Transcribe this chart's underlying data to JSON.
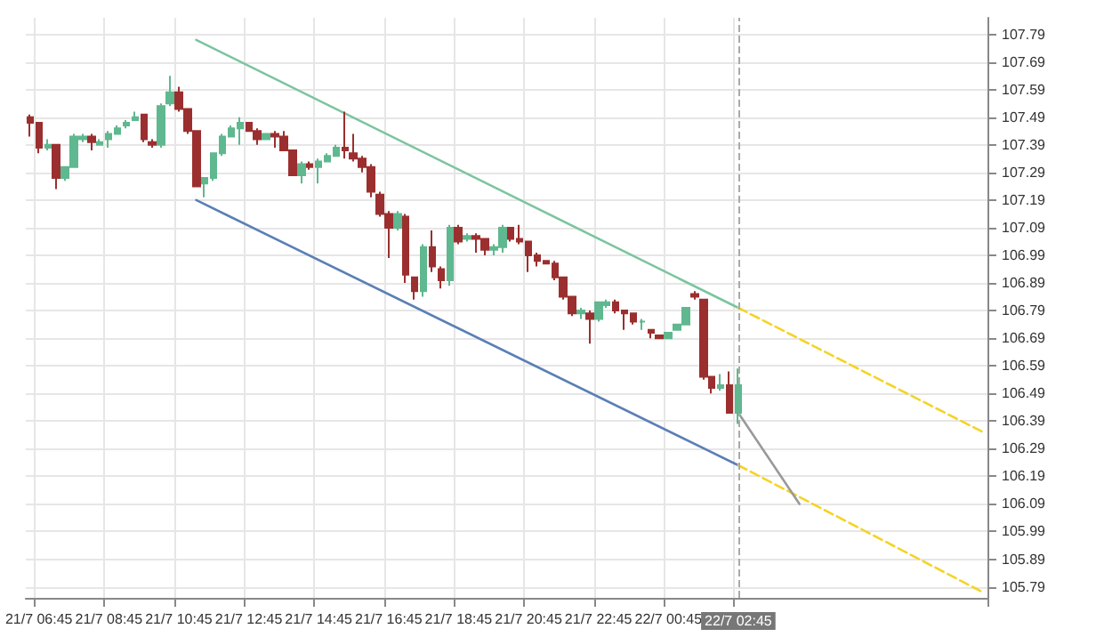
{
  "chart_data": {
    "type": "candlestick",
    "categories": [
      null,
      "21/7 06:45",
      null,
      null,
      null,
      null,
      null,
      null,
      null,
      "21/7 08:45",
      null,
      null,
      null,
      null,
      null,
      null,
      null,
      "21/7 10:45",
      null,
      null,
      null,
      null,
      null,
      null,
      null,
      "21/7 12:45",
      null,
      null,
      null,
      null,
      null,
      null,
      null,
      "21/7 14:45",
      null,
      null,
      null,
      null,
      null,
      null,
      null,
      "21/7 16:45",
      null,
      null,
      null,
      null,
      null,
      null,
      null,
      "21/7 18:45",
      null,
      null,
      null,
      null,
      null,
      null,
      null,
      "21/7 20:45",
      null,
      null,
      null,
      null,
      null,
      null,
      null,
      "21/7 22:45",
      null,
      null,
      null,
      null,
      null,
      null,
      null,
      "22/7 00:45",
      null,
      null,
      null,
      null,
      null,
      null,
      null,
      "22/7 02:45",
      null,
      null,
      null,
      null,
      null,
      null,
      null,
      null,
      null,
      null,
      null,
      null,
      null,
      null,
      null,
      null,
      null,
      null,
      null,
      null,
      null,
      null,
      null,
      null,
      null,
      null,
      null,
      null
    ],
    "series": [
      {
        "colors": [
          "#9b2f2f",
          "#9b2f2f",
          "#5fb88f",
          "#9b2f2f",
          "#5fb88f",
          "#5fb88f",
          "#5fb88f",
          "#9b2f2f",
          "#5fb88f",
          "#5fb88f",
          "#5fb88f",
          "#5fb88f",
          "#5fb88f",
          "#9b2f2f",
          "#9b2f2f",
          "#5fb88f",
          "#5fb88f",
          "#9b2f2f",
          "#9b2f2f",
          "#9b2f2f",
          "#5fb88f",
          "#5fb88f",
          "#5fb88f",
          "#5fb88f",
          "#5fb88f",
          "#9b2f2f",
          "#9b2f2f",
          "#5fb88f",
          "#9b2f2f",
          "#9b2f2f",
          "#9b2f2f",
          "#5fb88f",
          "#9b2f2f",
          "#5fb88f",
          "#5fb88f",
          "#5fb88f",
          "#9b2f2f",
          "#9b2f2f",
          "#9b2f2f",
          "#9b2f2f",
          "#9b2f2f",
          "#9b2f2f",
          "#5fb88f",
          "#9b2f2f",
          "#9b2f2f",
          "#5fb88f",
          "#9b2f2f",
          "#9b2f2f",
          "#5fb88f",
          "#9b2f2f",
          "#5fb88f",
          "#9b2f2f",
          "#9b2f2f",
          "#5fb88f",
          "#5fb88f",
          "#9b2f2f",
          "#9b2f2f",
          "#9b2f2f",
          "#9b2f2f",
          "#9b2f2f",
          "#9b2f2f",
          "#9b2f2f",
          "#9b2f2f",
          "#5fb88f",
          "#9b2f2f",
          "#5fb88f",
          "#5fb88f",
          "#9b2f2f",
          "#9b2f2f",
          "#9b2f2f",
          "#5fb88f",
          "#9b2f2f",
          "#9b2f2f",
          "#5fb88f",
          "#5fb88f",
          "#5fb88f",
          "#9b2f2f",
          "#9b2f2f",
          "#9b2f2f",
          "#5fb88f",
          "#9b2f2f",
          "#5fb88f",
          null,
          null,
          null,
          null,
          null,
          null,
          null,
          null,
          null,
          null,
          null,
          null,
          null,
          null,
          null,
          null,
          null,
          null,
          null,
          null,
          null,
          null,
          null,
          null,
          null,
          null,
          null,
          null
        ],
        "ohlc": [
          [
            107.49,
            107.5,
            107.42,
            107.47
          ],
          [
            107.47,
            107.47,
            107.36,
            107.38
          ],
          [
            107.38,
            107.41,
            107.37,
            107.39
          ],
          [
            107.39,
            107.39,
            107.23,
            107.27
          ],
          [
            107.27,
            107.31,
            107.26,
            107.31
          ],
          [
            107.31,
            107.43,
            107.31,
            107.42
          ],
          [
            107.41,
            107.43,
            107.4,
            107.42
          ],
          [
            107.42,
            107.43,
            107.37,
            107.4
          ],
          [
            107.39,
            107.41,
            107.39,
            107.4
          ],
          [
            107.41,
            107.44,
            107.38,
            107.43
          ],
          [
            107.43,
            107.46,
            107.43,
            107.45
          ],
          [
            107.46,
            107.48,
            107.45,
            107.47
          ],
          [
            107.48,
            107.51,
            107.48,
            107.49
          ],
          [
            107.5,
            107.5,
            107.4,
            107.41
          ],
          [
            107.4,
            107.41,
            107.38,
            107.39
          ],
          [
            107.39,
            107.54,
            107.38,
            107.53
          ],
          [
            107.54,
            107.64,
            107.53,
            107.58
          ],
          [
            107.58,
            107.6,
            107.51,
            107.52
          ],
          [
            107.52,
            107.52,
            107.43,
            107.44
          ],
          [
            107.44,
            107.44,
            107.24,
            107.24
          ],
          [
            107.25,
            107.27,
            107.2,
            107.27
          ],
          [
            107.27,
            107.36,
            107.26,
            107.36
          ],
          [
            107.36,
            107.43,
            107.35,
            107.42
          ],
          [
            107.42,
            107.46,
            107.42,
            107.45
          ],
          [
            107.45,
            107.49,
            107.39,
            107.47
          ],
          [
            107.47,
            107.47,
            107.44,
            107.44
          ],
          [
            107.44,
            107.45,
            107.39,
            107.41
          ],
          [
            107.41,
            107.43,
            107.41,
            107.43
          ],
          [
            107.43,
            107.44,
            107.38,
            107.42
          ],
          [
            107.42,
            107.44,
            107.37,
            107.37
          ],
          [
            107.37,
            107.37,
            107.28,
            107.28
          ],
          [
            107.28,
            107.33,
            107.25,
            107.32
          ],
          [
            107.32,
            107.33,
            107.3,
            107.31
          ],
          [
            107.31,
            107.34,
            107.25,
            107.33
          ],
          [
            107.33,
            107.36,
            107.33,
            107.35
          ],
          [
            107.35,
            107.39,
            107.35,
            107.38
          ],
          [
            107.38,
            107.51,
            107.34,
            107.37
          ],
          [
            107.36,
            107.43,
            107.33,
            107.34
          ],
          [
            107.34,
            107.35,
            107.29,
            107.31
          ],
          [
            107.31,
            107.32,
            107.2,
            107.22
          ],
          [
            107.21,
            107.22,
            107.13,
            107.14
          ],
          [
            107.14,
            107.15,
            106.98,
            107.09
          ],
          [
            107.09,
            107.15,
            107.08,
            107.14
          ],
          [
            107.13,
            107.14,
            106.89,
            106.92
          ],
          [
            106.91,
            106.91,
            106.83,
            106.86
          ],
          [
            106.86,
            107.03,
            106.84,
            107.02
          ],
          [
            107.02,
            107.08,
            106.93,
            106.95
          ],
          [
            106.94,
            106.95,
            106.87,
            106.9
          ],
          [
            106.9,
            107.1,
            106.88,
            107.09
          ],
          [
            107.09,
            107.1,
            107.03,
            107.04
          ],
          [
            107.05,
            107.07,
            107.04,
            107.06
          ],
          [
            107.06,
            107.07,
            107.0,
            107.05
          ],
          [
            107.05,
            107.05,
            106.99,
            107.01
          ],
          [
            107.01,
            107.03,
            106.99,
            107.02
          ],
          [
            107.02,
            107.1,
            107.0,
            107.09
          ],
          [
            107.09,
            107.09,
            107.04,
            107.05
          ],
          [
            107.05,
            107.1,
            107.03,
            107.04
          ],
          [
            107.04,
            107.04,
            106.93,
            106.99
          ],
          [
            106.99,
            107.0,
            106.95,
            106.97
          ],
          [
            106.97,
            106.97,
            106.96,
            106.96
          ],
          [
            106.96,
            106.97,
            106.9,
            106.91
          ],
          [
            106.91,
            106.91,
            106.83,
            106.84
          ],
          [
            106.84,
            106.84,
            106.77,
            106.78
          ],
          [
            106.78,
            106.8,
            106.76,
            106.79
          ],
          [
            106.78,
            106.79,
            106.67,
            106.76
          ],
          [
            106.76,
            106.82,
            106.75,
            106.82
          ],
          [
            106.81,
            106.83,
            106.8,
            106.82
          ],
          [
            106.82,
            106.83,
            106.78,
            106.79
          ],
          [
            106.79,
            106.79,
            106.72,
            106.78
          ],
          [
            106.78,
            106.78,
            106.74,
            106.75
          ],
          [
            106.75,
            106.76,
            106.72,
            106.75
          ],
          [
            106.72,
            106.72,
            106.69,
            106.71
          ],
          [
            106.7,
            106.7,
            106.69,
            106.69
          ],
          [
            106.69,
            106.71,
            106.69,
            106.71
          ],
          [
            106.72,
            106.74,
            106.72,
            106.74
          ],
          [
            106.74,
            106.8,
            106.74,
            106.8
          ],
          [
            106.85,
            106.86,
            106.83,
            106.84
          ],
          [
            106.83,
            106.83,
            106.54,
            106.55
          ],
          [
            106.55,
            106.55,
            106.49,
            106.51
          ],
          [
            106.51,
            106.56,
            106.5,
            106.52
          ],
          [
            106.52,
            106.57,
            106.42,
            106.42
          ],
          [
            106.42,
            106.58,
            106.38,
            106.52
          ],
          null,
          null,
          null,
          null,
          null,
          null,
          null,
          null,
          null,
          null,
          null,
          null,
          null,
          null,
          null,
          null,
          null,
          null,
          null,
          null,
          null,
          null,
          null,
          null,
          null,
          null,
          null,
          null
        ]
      },
      {
        "type": "line",
        "color": "#7cc4a0",
        "line_style": "solid",
        "values": [
          null,
          null,
          null,
          null,
          null,
          null,
          null,
          null,
          null,
          null,
          null,
          null,
          null,
          null,
          null,
          null,
          null,
          null,
          null,
          107.77,
          null,
          null,
          null,
          null,
          null,
          null,
          null,
          null,
          null,
          null,
          null,
          null,
          null,
          null,
          null,
          null,
          null,
          null,
          null,
          null,
          null,
          null,
          null,
          null,
          null,
          null,
          null,
          null,
          null,
          null,
          null,
          null,
          null,
          null,
          null,
          null,
          null,
          null,
          null,
          null,
          null,
          null,
          null,
          null,
          null,
          null,
          null,
          null,
          null,
          null,
          null,
          null,
          null,
          null,
          null,
          null,
          null,
          null,
          null,
          null,
          null,
          106.8,
          null,
          null,
          null,
          null,
          null,
          null,
          null,
          null,
          null,
          null,
          null,
          null,
          null,
          null,
          null,
          null,
          null,
          null,
          null,
          null,
          null,
          null,
          null,
          null,
          null,
          null,
          null,
          null
        ]
      },
      {
        "type": "line",
        "color": "#5b7fb5",
        "line_style": "solid",
        "values": [
          null,
          null,
          null,
          null,
          null,
          null,
          null,
          null,
          null,
          null,
          null,
          null,
          null,
          null,
          null,
          null,
          null,
          null,
          null,
          107.19,
          null,
          null,
          null,
          null,
          null,
          null,
          null,
          null,
          null,
          null,
          null,
          null,
          null,
          null,
          null,
          null,
          null,
          null,
          null,
          null,
          null,
          null,
          null,
          null,
          null,
          null,
          null,
          null,
          null,
          null,
          null,
          null,
          null,
          null,
          null,
          null,
          null,
          null,
          null,
          null,
          null,
          null,
          null,
          null,
          null,
          null,
          null,
          null,
          null,
          null,
          null,
          null,
          null,
          null,
          null,
          null,
          null,
          null,
          null,
          null,
          null,
          106.23,
          null,
          null,
          null,
          null,
          null,
          null,
          null,
          null,
          null,
          null,
          null,
          null,
          null,
          null,
          null,
          null,
          null,
          null,
          null,
          null,
          null,
          null,
          null,
          null,
          null,
          null,
          null,
          null
        ]
      },
      {
        "type": "line",
        "color": "#f5d327",
        "line_style": "dashed",
        "values": [
          null,
          null,
          null,
          null,
          null,
          null,
          null,
          null,
          null,
          null,
          null,
          null,
          null,
          null,
          null,
          null,
          null,
          null,
          null,
          null,
          null,
          null,
          null,
          null,
          null,
          null,
          null,
          null,
          null,
          null,
          null,
          null,
          null,
          null,
          null,
          null,
          null,
          null,
          null,
          null,
          null,
          null,
          null,
          null,
          null,
          null,
          null,
          null,
          null,
          null,
          null,
          null,
          null,
          null,
          null,
          null,
          null,
          null,
          null,
          null,
          null,
          null,
          null,
          null,
          null,
          null,
          null,
          null,
          null,
          null,
          null,
          null,
          null,
          null,
          null,
          null,
          null,
          null,
          null,
          null,
          null,
          106.8,
          null,
          null,
          null,
          null,
          null,
          null,
          null,
          null,
          null,
          null,
          null,
          null,
          null,
          null,
          null,
          null,
          null,
          null,
          null,
          null,
          null,
          null,
          null,
          null,
          null,
          null,
          null,
          106.35
        ]
      },
      {
        "type": "line",
        "color": "#f5d327",
        "line_style": "dashed",
        "values": [
          null,
          null,
          null,
          null,
          null,
          null,
          null,
          null,
          null,
          null,
          null,
          null,
          null,
          null,
          null,
          null,
          null,
          null,
          null,
          null,
          null,
          null,
          null,
          null,
          null,
          null,
          null,
          null,
          null,
          null,
          null,
          null,
          null,
          null,
          null,
          null,
          null,
          null,
          null,
          null,
          null,
          null,
          null,
          null,
          null,
          null,
          null,
          null,
          null,
          null,
          null,
          null,
          null,
          null,
          null,
          null,
          null,
          null,
          null,
          null,
          null,
          null,
          null,
          null,
          null,
          null,
          null,
          null,
          null,
          null,
          null,
          null,
          null,
          null,
          null,
          null,
          null,
          null,
          null,
          null,
          null,
          106.23,
          null,
          null,
          null,
          null,
          null,
          null,
          null,
          null,
          null,
          null,
          null,
          null,
          null,
          null,
          null,
          null,
          null,
          null,
          null,
          null,
          null,
          null,
          null,
          null,
          null,
          null,
          null,
          105.77
        ]
      },
      {
        "type": "line",
        "color": "#999999",
        "line_style": "solid",
        "values": [
          null,
          null,
          null,
          null,
          null,
          null,
          null,
          null,
          null,
          null,
          null,
          null,
          null,
          null,
          null,
          null,
          null,
          null,
          null,
          null,
          null,
          null,
          null,
          null,
          null,
          null,
          null,
          null,
          null,
          null,
          null,
          null,
          null,
          null,
          null,
          null,
          null,
          null,
          null,
          null,
          null,
          null,
          null,
          null,
          null,
          null,
          null,
          null,
          null,
          null,
          null,
          null,
          null,
          null,
          null,
          null,
          null,
          null,
          null,
          null,
          null,
          null,
          null,
          null,
          null,
          null,
          null,
          null,
          null,
          null,
          null,
          null,
          null,
          null,
          null,
          null,
          null,
          null,
          null,
          null,
          null,
          106.42,
          null,
          null,
          null,
          null,
          null,
          null,
          106.09,
          null,
          null,
          null,
          null,
          null,
          null,
          null,
          null,
          null,
          null,
          null,
          null,
          null,
          null,
          null,
          null,
          null,
          null,
          null,
          null,
          null
        ]
      }
    ],
    "ylim": [
      105.75,
      107.85
    ],
    "yticks": [
      105.79,
      105.89,
      105.99,
      106.09,
      106.19,
      106.29,
      106.39,
      106.49,
      106.59,
      106.69,
      106.79,
      106.89,
      106.99,
      107.09,
      107.19,
      107.29,
      107.39,
      107.49,
      107.59,
      107.69,
      107.79
    ],
    "ref_lines": [
      {
        "axis": "x",
        "value": "22/7 02:45",
        "color": "#aaaaaa",
        "line_style": "dashed"
      }
    ],
    "grid": true,
    "marker": "none"
  }
}
